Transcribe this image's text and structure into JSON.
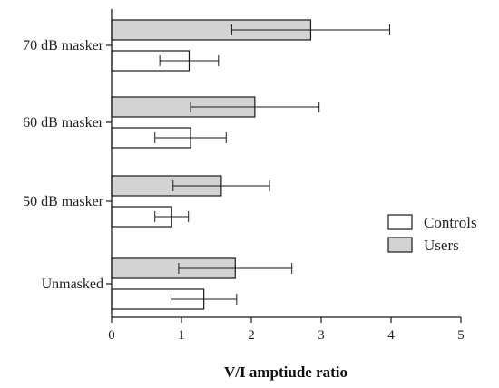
{
  "chart_data": {
    "type": "bar",
    "orientation": "horizontal",
    "categories": [
      "70 dB masker",
      "60 dB masker",
      "50 dB masker",
      "Unmasked"
    ],
    "series": [
      {
        "name": "Users",
        "color": "#d3d3d3",
        "values": [
          2.85,
          2.05,
          1.57,
          1.77
        ],
        "error": [
          1.13,
          0.92,
          0.69,
          0.81
        ]
      },
      {
        "name": "Controls",
        "color": "#ffffff",
        "values": [
          1.11,
          1.13,
          0.86,
          1.32
        ],
        "error": [
          0.42,
          0.51,
          0.24,
          0.47
        ]
      }
    ],
    "xlabel": "V/I amptiude ratio",
    "ylabel": "",
    "title": "",
    "xlim": [
      0,
      5
    ],
    "xticks": [
      "0",
      "1",
      "2",
      "3",
      "4",
      "5"
    ],
    "grid": false,
    "legend_position": "right",
    "legend_order": [
      "Controls",
      "Users"
    ]
  }
}
